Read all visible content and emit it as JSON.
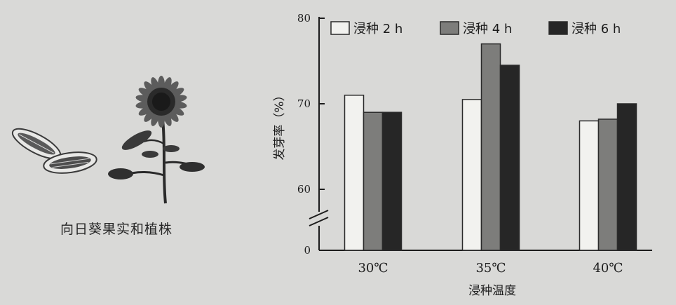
{
  "illustration": {
    "caption": "向日葵果实和植株",
    "icons": [
      "sunflower-seed-icon",
      "sunflower-plant-icon"
    ]
  },
  "chart_data": {
    "type": "bar",
    "categories": [
      "30℃",
      "35℃",
      "40℃"
    ],
    "series": [
      {
        "name": "浸种 2 h",
        "values": [
          71,
          70.5,
          68
        ],
        "color": "#f2f2ef"
      },
      {
        "name": "浸种 4 h",
        "values": [
          69,
          77,
          68.2
        ],
        "color": "#7d7d7b"
      },
      {
        "name": "浸种 6 h",
        "values": [
          69,
          74.5,
          70
        ],
        "color": "#262626"
      }
    ],
    "xlabel": "浸种温度",
    "ylabel": "发芽率（%）",
    "ylim": [
      0,
      80
    ],
    "axis_break": [
      0,
      55
    ],
    "yticks": [
      0,
      60,
      70,
      80
    ],
    "grid": false,
    "legend": "top"
  }
}
